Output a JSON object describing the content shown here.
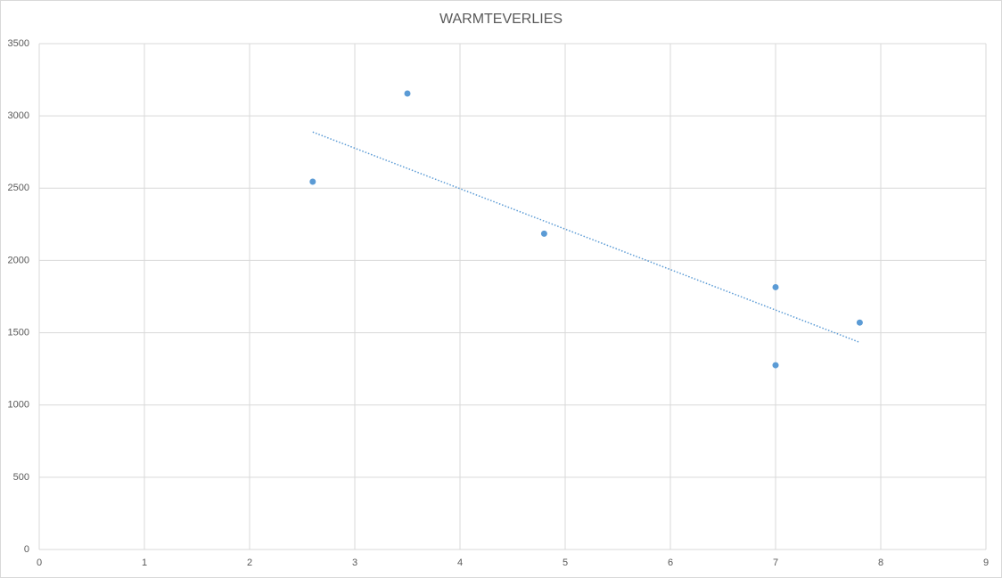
{
  "chart_data": {
    "type": "scatter",
    "title": "WARMTEVERLIES",
    "series": [
      {
        "color": "#5b9bd5",
        "x": [
          2.6,
          3.5,
          4.8,
          7.0,
          7.0,
          7.8
        ],
        "values": [
          2545,
          3155,
          2185,
          1815,
          1275,
          1570
        ]
      }
    ],
    "trendline": "linear",
    "xlim": [
      0,
      9
    ],
    "xticks": [
      0,
      1,
      2,
      3,
      4,
      5,
      6,
      7,
      8,
      9
    ],
    "ylim": [
      0,
      3500
    ],
    "yticks": [
      0,
      500,
      1000,
      1500,
      2000,
      2500,
      3000,
      3500
    ],
    "grid": true
  }
}
